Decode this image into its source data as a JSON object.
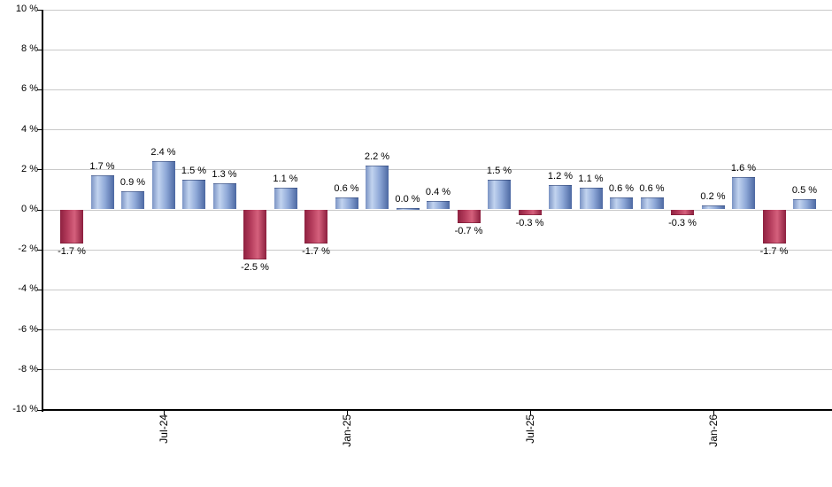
{
  "chart_data": {
    "type": "bar",
    "title": "",
    "unit": "%",
    "values": [
      -1.7,
      1.7,
      0.9,
      2.4,
      1.5,
      1.3,
      -2.5,
      1.1,
      -1.7,
      0.6,
      2.2,
      0.0,
      0.4,
      -0.7,
      1.5,
      -0.3,
      1.2,
      1.1,
      0.6,
      0.6,
      -0.3,
      0.2,
      1.6,
      -1.7,
      0.5
    ],
    "bar_labels": [
      "-1.7 %",
      "1.7 %",
      "0.9 %",
      "2.4 %",
      "1.5 %",
      "1.3 %",
      "-2.5 %",
      "1.1 %",
      "-1.7 %",
      "0.6 %",
      "2.2 %",
      "0.0 %",
      "0.4 %",
      "-0.7 %",
      "1.5 %",
      "-0.3 %",
      "1.2 %",
      "1.1 %",
      "0.6 %",
      "0.6 %",
      "-0.3 %",
      "0.2 %",
      "1.6 %",
      "-1.7 %",
      "0.5 %"
    ],
    "x_ticks": [
      {
        "label": "Jul-24",
        "bar_index": 3
      },
      {
        "label": "Jan-25",
        "bar_index": 9
      },
      {
        "label": "Jul-25",
        "bar_index": 15
      },
      {
        "label": "Jan-26",
        "bar_index": 21
      }
    ],
    "y_ticks": [
      {
        "value": 10,
        "label": "10 %"
      },
      {
        "value": 8,
        "label": "8 %"
      },
      {
        "value": 6,
        "label": "6 %"
      },
      {
        "value": 4,
        "label": "4 %"
      },
      {
        "value": 2,
        "label": "2 %"
      },
      {
        "value": 0,
        "label": "0 %"
      },
      {
        "value": -2,
        "label": "-2 %"
      },
      {
        "value": -4,
        "label": "-4 %"
      },
      {
        "value": -6,
        "label": "-6 %"
      },
      {
        "value": -8,
        "label": "-8 %"
      },
      {
        "value": -10,
        "label": "-10 %"
      }
    ],
    "ylim": [
      -10,
      10
    ],
    "grid": true,
    "legend": "none",
    "colors": {
      "positive_gradient": [
        "#7b94c4",
        "#c2d3ef",
        "#8fa9d8",
        "#4c68a2"
      ],
      "negative_gradient": [
        "#8e2140",
        "#b23a5a",
        "#d5607c",
        "#8c1f3e"
      ],
      "gridline": "#c9c9c9",
      "axis": "#000000",
      "label_text": "#000000",
      "background": "#ffffff"
    }
  }
}
